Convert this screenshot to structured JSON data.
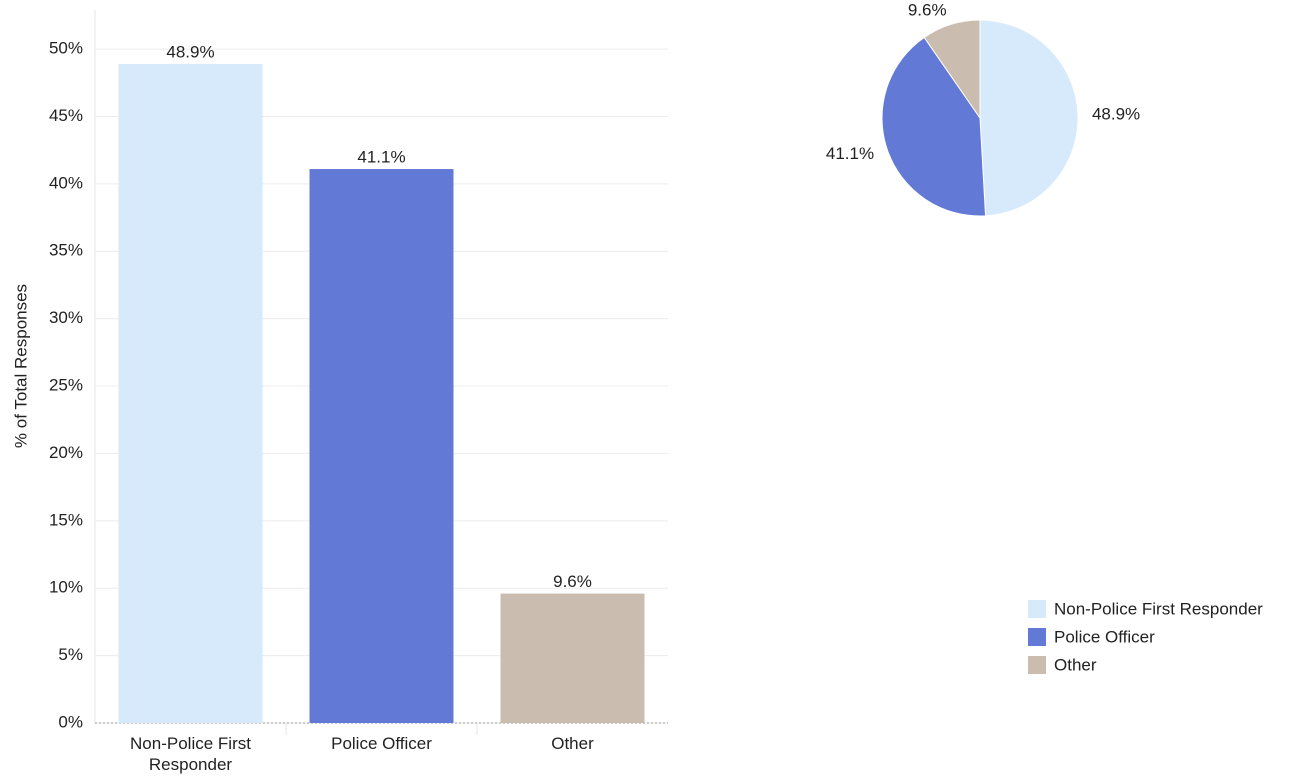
{
  "chart_data": [
    {
      "type": "bar",
      "y_label": "% of Total Responses",
      "categories": [
        "Non-Police First Responder",
        "Police Officer",
        "Other"
      ],
      "values": [
        48.9,
        41.1,
        9.6
      ],
      "value_labels": [
        "48.9%",
        "41.1%",
        "9.6%"
      ],
      "colors": [
        "#d6eafb",
        "#6279d6",
        "#cbbcb0"
      ],
      "ylim": [
        0,
        52.9
      ],
      "yticks": [
        {
          "value": 0,
          "label": "0%"
        },
        {
          "value": 5,
          "label": "5%"
        },
        {
          "value": 10,
          "label": "10%"
        },
        {
          "value": 15,
          "label": "15%"
        },
        {
          "value": 20,
          "label": "20%"
        },
        {
          "value": 25,
          "label": "25%"
        },
        {
          "value": 30,
          "label": "30%"
        },
        {
          "value": 35,
          "label": "35%"
        },
        {
          "value": 40,
          "label": "40%"
        },
        {
          "value": 45,
          "label": "45%"
        },
        {
          "value": 50,
          "label": "50%"
        }
      ],
      "grid": true
    },
    {
      "type": "pie",
      "categories": [
        "Non-Police First Responder",
        "Police Officer",
        "Other"
      ],
      "values": [
        48.9,
        41.1,
        9.6
      ],
      "value_labels": [
        "48.9%",
        "41.1%",
        "9.6%"
      ],
      "colors": [
        "#d6eafb",
        "#6279d6",
        "#cbbcb0"
      ],
      "legend": "bottom-right"
    }
  ]
}
